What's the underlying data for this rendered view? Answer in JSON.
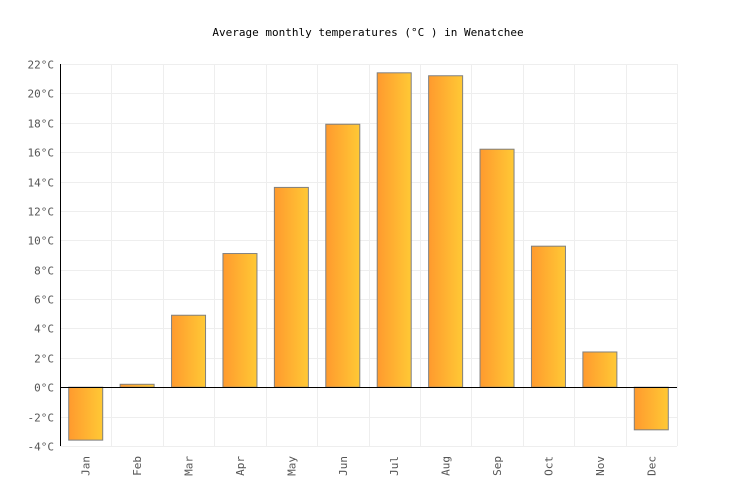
{
  "chart_data": {
    "type": "bar",
    "title": "Average monthly temperatures (°C ) in Wenatchee",
    "xlabel": "",
    "ylabel": "",
    "categories": [
      "Jan",
      "Feb",
      "Mar",
      "Apr",
      "May",
      "Jun",
      "Jul",
      "Aug",
      "Sep",
      "Oct",
      "Nov",
      "Dec"
    ],
    "values": [
      -3.6,
      0.2,
      4.9,
      9.1,
      13.6,
      17.9,
      21.4,
      21.2,
      16.2,
      9.6,
      2.4,
      -2.9
    ],
    "ylim": [
      -4,
      22
    ],
    "yticks": [
      "-4°C",
      "-2°C",
      "0°C",
      "2°C",
      "4°C",
      "6°C",
      "8°C",
      "10°C",
      "12°C",
      "14°C",
      "16°C",
      "18°C",
      "20°C",
      "22°C"
    ],
    "grid": true,
    "colors": {
      "bar_start": "#ff9a2e",
      "bar_end": "#ffc935",
      "bar_stroke": "#808080",
      "grid": "#eeeeee",
      "axis": "#000000",
      "text": "#555555"
    }
  }
}
